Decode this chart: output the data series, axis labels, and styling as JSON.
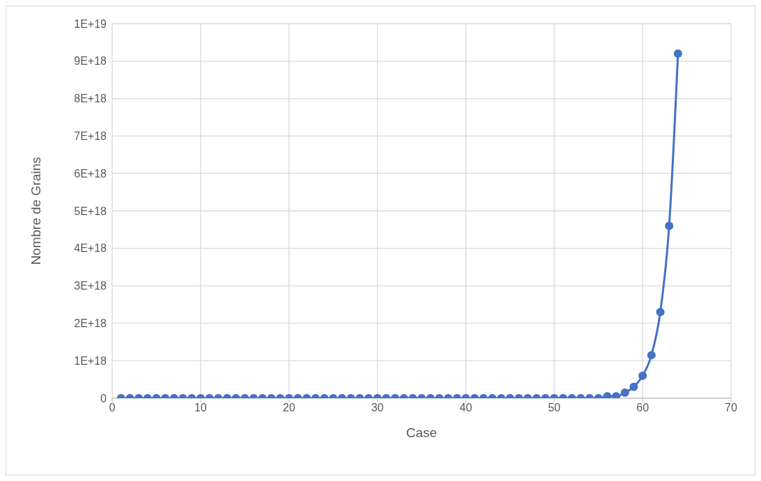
{
  "chart_data": {
    "type": "line",
    "xlabel": "Case",
    "ylabel": "Nombre de Grains",
    "x": [
      1,
      2,
      3,
      4,
      5,
      6,
      7,
      8,
      9,
      10,
      11,
      12,
      13,
      14,
      15,
      16,
      17,
      18,
      19,
      20,
      21,
      22,
      23,
      24,
      25,
      26,
      27,
      28,
      29,
      30,
      31,
      32,
      33,
      34,
      35,
      36,
      37,
      38,
      39,
      40,
      41,
      42,
      43,
      44,
      45,
      46,
      47,
      48,
      49,
      50,
      51,
      52,
      53,
      54,
      55,
      56,
      57,
      58,
      59,
      60,
      61,
      62,
      63,
      64
    ],
    "series": [
      {
        "color": "#4472c4",
        "values": [
          0,
          0,
          0,
          0,
          0,
          0,
          0,
          0,
          0,
          0,
          0,
          0,
          0,
          0,
          0,
          0,
          0,
          0,
          0,
          0,
          0,
          0,
          0,
          0,
          0,
          0,
          0,
          0,
          0,
          0,
          0,
          0,
          0,
          0,
          0,
          0,
          0,
          0,
          0,
          0,
          0,
          0,
          0,
          0,
          0,
          0,
          0,
          0,
          0,
          0,
          0,
          0,
          0,
          0,
          0,
          5e+16,
          5e+16,
          1.5e+17,
          3e+17,
          6e+17,
          1.15e+18,
          2.3e+18,
          4.6e+18,
          9.2e+18
        ]
      }
    ],
    "xlim": [
      0,
      70
    ],
    "xticks": [
      0,
      10,
      20,
      30,
      40,
      50,
      60,
      70
    ],
    "ylim": [
      0,
      1e+19
    ],
    "yticks": [
      0,
      {
        "value": 1e+18,
        "label": "1E+18"
      },
      {
        "value": 2e+18,
        "label": "2E+18"
      },
      {
        "value": 3e+18,
        "label": "3E+18"
      },
      {
        "value": 4e+18,
        "label": "4E+18"
      },
      {
        "value": 5e+18,
        "label": "5E+18"
      },
      {
        "value": 6e+18,
        "label": "6E+18"
      },
      {
        "value": 7e+18,
        "label": "7E+18"
      },
      {
        "value": 8e+18,
        "label": "8E+18"
      },
      {
        "value": 9e+18,
        "label": "9E+18"
      },
      {
        "value": 1e+19,
        "label": "1E+19"
      }
    ],
    "grid": true,
    "marker": "circle",
    "line_style": "solid"
  }
}
